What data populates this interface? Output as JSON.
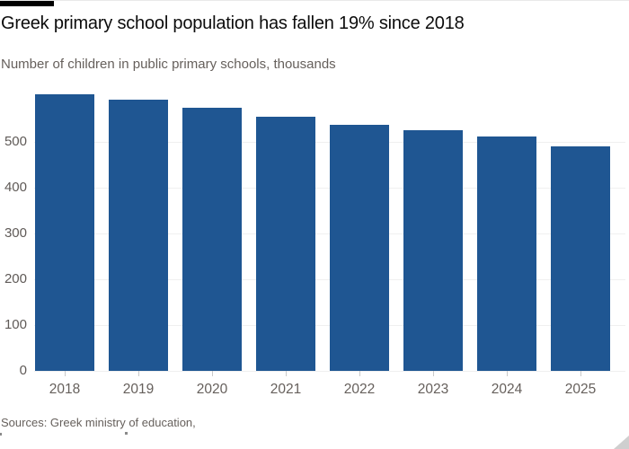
{
  "branding": {
    "accent_bar_color": "#000000"
  },
  "header": {
    "title": "Greek primary school population has fallen 19% since 2018",
    "subtitle": "Number of children in public primary schools, thousands"
  },
  "footer": {
    "source": "Sources: Greek ministry of education,"
  },
  "chart_data": {
    "type": "bar",
    "title": "Greek primary school population has fallen 19% since 2018",
    "subtitle": "Number of children in public primary schools, thousands",
    "categories": [
      "2018",
      "2019",
      "2020",
      "2021",
      "2022",
      "2023",
      "2024",
      "2025"
    ],
    "values": [
      604,
      592,
      575,
      555,
      537,
      525,
      512,
      490
    ],
    "series_name": "Number of children in public primary schools (thousands)",
    "xlabel": "",
    "ylabel": "",
    "yticks": [
      0,
      100,
      200,
      300,
      400,
      500
    ],
    "ylim": [
      0,
      620
    ],
    "grid": "horizontal-only",
    "legend": "none",
    "bar_color": "#1f5692",
    "gridline_color": "#f0f0f0",
    "tick_color": "#c9c9c9",
    "label_color": "#66605c"
  }
}
